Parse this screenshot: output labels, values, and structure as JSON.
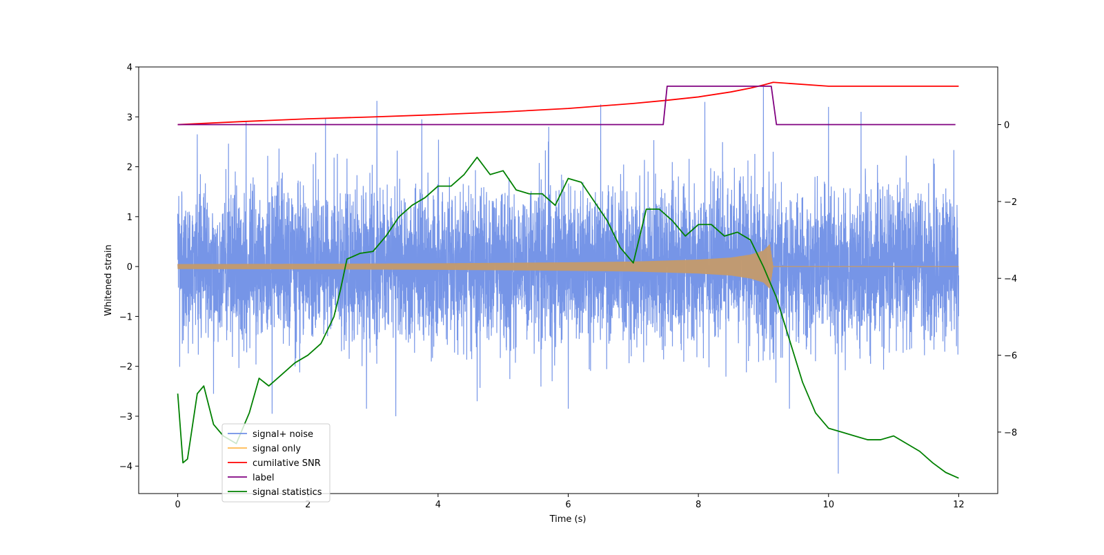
{
  "chart_data": {
    "type": "line",
    "title": "",
    "xlabel": "Time (s)",
    "ylabel_left": "Whitened strain",
    "ylabel_right": "",
    "xlim": [
      -0.6,
      12.6
    ],
    "ylim_left": [
      -4.55,
      4.0
    ],
    "ylim_right": [
      -9.6,
      1.5
    ],
    "x_ticks": [
      0,
      2,
      4,
      6,
      8,
      10,
      12
    ],
    "y_ticks_left": [
      -4,
      -3,
      -2,
      -1,
      0,
      1,
      2,
      3,
      4
    ],
    "y_ticks_right": [
      -8,
      -6,
      -4,
      -2,
      0
    ],
    "grid": false,
    "legend_position": "lower-left",
    "colors": {
      "signal_noise": "#6f8fe6",
      "signal_only": "#ffb84d",
      "cumulative_snr": "#ff0000",
      "label": "#800080",
      "signal_statistics": "#008000"
    },
    "legend": [
      {
        "name": "signal+ noise",
        "color": "#6f8fe6"
      },
      {
        "name": "signal only",
        "color": "#ffb84d"
      },
      {
        "name": "cumilative SNR",
        "color": "#ff0000"
      },
      {
        "name": "label",
        "color": "#800080"
      },
      {
        "name": "signal statistics",
        "color": "#008000"
      }
    ],
    "series": [
      {
        "name": "cumilative SNR",
        "axis": "right",
        "x": [
          0,
          1,
          2,
          3,
          4,
          5,
          6,
          7,
          7.5,
          8,
          8.5,
          8.8,
          9.0,
          9.15,
          10,
          11,
          12
        ],
        "y": [
          0,
          0.08,
          0.15,
          0.2,
          0.26,
          0.33,
          0.42,
          0.55,
          0.63,
          0.72,
          0.85,
          0.95,
          1.03,
          1.1,
          1.0,
          1.0,
          1.0
        ]
      },
      {
        "name": "label",
        "axis": "right",
        "x": [
          0,
          7.46,
          7.52,
          9.12,
          9.2,
          11.95
        ],
        "y": [
          0,
          0,
          1.0,
          1.0,
          0,
          0
        ]
      },
      {
        "name": "signal statistics",
        "axis": "right",
        "x": [
          0,
          0.08,
          0.15,
          0.3,
          0.4,
          0.55,
          0.7,
          0.9,
          1.1,
          1.25,
          1.4,
          1.6,
          1.8,
          2.0,
          2.2,
          2.4,
          2.5,
          2.6,
          2.8,
          3.0,
          3.2,
          3.4,
          3.6,
          3.8,
          4.0,
          4.2,
          4.4,
          4.6,
          4.8,
          5.0,
          5.2,
          5.4,
          5.6,
          5.8,
          6.0,
          6.2,
          6.4,
          6.6,
          6.8,
          7.0,
          7.2,
          7.4,
          7.6,
          7.8,
          8.0,
          8.2,
          8.4,
          8.6,
          8.8,
          9.0,
          9.2,
          9.4,
          9.6,
          9.8,
          10.0,
          10.2,
          10.4,
          10.6,
          10.8,
          11.0,
          11.2,
          11.4,
          11.6,
          11.8,
          12.0
        ],
        "y": [
          -7.0,
          -8.8,
          -8.7,
          -7.0,
          -6.8,
          -7.8,
          -8.1,
          -8.3,
          -7.5,
          -6.6,
          -6.8,
          -6.5,
          -6.2,
          -6.0,
          -5.7,
          -5.0,
          -4.3,
          -3.5,
          -3.35,
          -3.3,
          -2.9,
          -2.4,
          -2.1,
          -1.9,
          -1.6,
          -1.6,
          -1.3,
          -0.85,
          -1.3,
          -1.2,
          -1.7,
          -1.8,
          -1.8,
          -2.1,
          -1.4,
          -1.5,
          -2.0,
          -2.5,
          -3.2,
          -3.6,
          -2.2,
          -2.2,
          -2.5,
          -2.9,
          -2.6,
          -2.6,
          -2.9,
          -2.8,
          -3.0,
          -3.7,
          -4.5,
          -5.6,
          -6.7,
          -7.5,
          -7.9,
          -8.0,
          -8.1,
          -8.2,
          -8.2,
          -8.1,
          -8.3,
          -8.5,
          -8.8,
          -9.05,
          -9.2
        ]
      },
      {
        "name": "signal only",
        "axis": "left",
        "type": "envelope",
        "x": [
          0,
          2,
          4,
          6,
          7,
          8,
          8.5,
          8.8,
          9.0,
          9.1,
          9.15,
          12
        ],
        "amplitude": [
          0.05,
          0.055,
          0.065,
          0.085,
          0.1,
          0.14,
          0.18,
          0.24,
          0.32,
          0.45,
          0.0,
          0.0
        ]
      },
      {
        "name": "signal+ noise",
        "axis": "left",
        "type": "noise",
        "x_range": [
          0,
          12
        ],
        "samples": 6000,
        "sigma": 0.75,
        "spikes": [
          {
            "x": 0.3,
            "y": 2.65
          },
          {
            "x": 0.55,
            "y": -2.55
          },
          {
            "x": 1.05,
            "y": 2.9
          },
          {
            "x": 1.45,
            "y": -2.95
          },
          {
            "x": 2.27,
            "y": 2.97
          },
          {
            "x": 2.9,
            "y": -2.85
          },
          {
            "x": 3.06,
            "y": 3.32
          },
          {
            "x": 3.35,
            "y": -3.0
          },
          {
            "x": 3.75,
            "y": 2.95
          },
          {
            "x": 4.6,
            "y": -2.7
          },
          {
            "x": 5.7,
            "y": 2.8
          },
          {
            "x": 6.0,
            "y": -2.85
          },
          {
            "x": 6.5,
            "y": 3.25
          },
          {
            "x": 8.1,
            "y": 3.3
          },
          {
            "x": 9.0,
            "y": 3.6
          },
          {
            "x": 9.4,
            "y": -2.85
          },
          {
            "x": 10.0,
            "y": 3.2
          },
          {
            "x": 10.15,
            "y": -4.15
          },
          {
            "x": 10.5,
            "y": 3.1
          }
        ]
      }
    ]
  }
}
